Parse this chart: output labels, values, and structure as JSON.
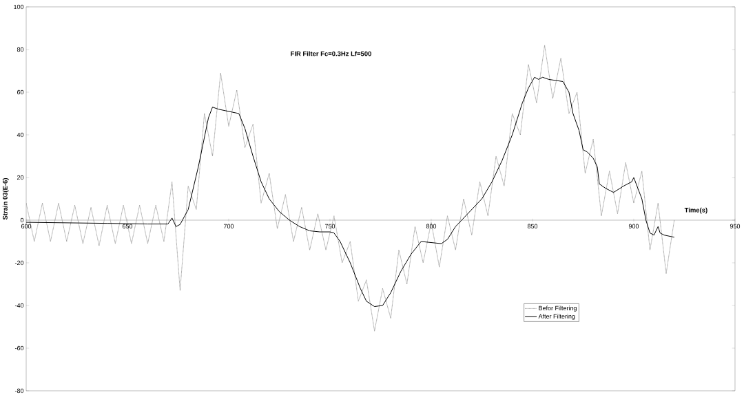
{
  "chart_data": {
    "type": "line",
    "title": "FIR Filter Fc=0.3Hz Lf=500",
    "xlabel": "Time(s)",
    "ylabel": "Strain 03(E-6)",
    "xlim": [
      600,
      950
    ],
    "ylim": [
      -80,
      100
    ],
    "xticks": [
      600,
      650,
      700,
      750,
      800,
      850,
      900,
      950
    ],
    "yticks": [
      -80,
      -60,
      -40,
      -20,
      0,
      20,
      40,
      60,
      80,
      100
    ],
    "grid": false,
    "legend": "bottom right",
    "marker": "none",
    "series": [
      {
        "name": "Befor Filtering",
        "color": "#808080",
        "line_style": "dotted",
        "x": [
          600,
          604,
          608,
          612,
          616,
          620,
          624,
          628,
          632,
          636,
          640,
          644,
          648,
          652,
          656,
          660,
          664,
          668,
          672,
          676,
          680,
          684,
          688,
          692,
          696,
          700,
          704,
          708,
          712,
          716,
          720,
          724,
          728,
          732,
          736,
          740,
          744,
          748,
          752,
          756,
          760,
          764,
          768,
          772,
          776,
          780,
          784,
          788,
          792,
          796,
          800,
          804,
          808,
          812,
          816,
          820,
          824,
          828,
          832,
          836,
          840,
          844,
          848,
          852,
          856,
          860,
          864,
          868,
          872,
          876,
          880,
          884,
          888,
          892,
          896,
          900,
          904,
          908,
          912,
          916,
          920
        ],
        "values": [
          8,
          -10,
          8,
          -10,
          8,
          -10,
          7,
          -11,
          6,
          -12,
          7,
          -11,
          7,
          -11,
          7,
          -11,
          7,
          -10,
          18,
          -33,
          16,
          5,
          50,
          30,
          69,
          44,
          61,
          34,
          45,
          8,
          22,
          -4,
          12,
          -10,
          6,
          -14,
          3,
          -14,
          2,
          -20,
          -10,
          -38,
          -28,
          -52,
          -32,
          -46,
          -14,
          -30,
          -3,
          -20,
          -1,
          -22,
          2,
          -14,
          10,
          -7,
          18,
          2,
          30,
          16,
          50,
          40,
          73,
          55,
          82,
          57,
          76,
          50,
          60,
          22,
          38,
          2,
          23,
          3,
          27,
          8,
          23,
          -14,
          8,
          -25,
          0
        ]
      },
      {
        "name": "After Filtering",
        "color": "#000000",
        "line_style": "solid",
        "x": [
          600,
          640,
          660,
          670,
          672,
          674,
          676,
          680,
          685,
          690,
          692,
          695,
          700,
          705,
          708,
          712,
          716,
          720,
          725,
          730,
          735,
          740,
          745,
          750,
          752,
          755,
          760,
          765,
          768,
          772,
          776,
          780,
          785,
          790,
          795,
          800,
          805,
          808,
          812,
          815,
          820,
          825,
          830,
          835,
          840,
          845,
          848,
          851,
          853,
          855,
          858,
          865,
          868,
          870,
          873,
          875,
          877,
          880,
          882,
          883,
          886,
          890,
          895,
          899,
          900,
          902,
          904,
          906,
          908,
          910,
          912,
          913,
          915,
          920
        ],
        "values": [
          -1,
          -1.5,
          -1.8,
          -1.8,
          1,
          -3,
          -2,
          5,
          25,
          48,
          53,
          52,
          51,
          50,
          43,
          30,
          18,
          10,
          4,
          0,
          -3,
          -5,
          -5.5,
          -5.5,
          -6,
          -10,
          -20,
          -32,
          -38,
          -40.5,
          -40,
          -34,
          -24,
          -16,
          -10,
          -10.5,
          -11,
          -9,
          -3,
          0,
          5,
          10,
          18,
          28,
          40,
          55,
          62,
          67,
          66,
          67,
          66,
          65,
          60,
          50,
          42,
          33,
          32,
          29,
          25,
          17,
          15,
          13,
          16,
          18,
          20,
          15,
          10,
          0,
          -6,
          -7,
          -3,
          -6,
          -7,
          -8
        ]
      }
    ]
  }
}
